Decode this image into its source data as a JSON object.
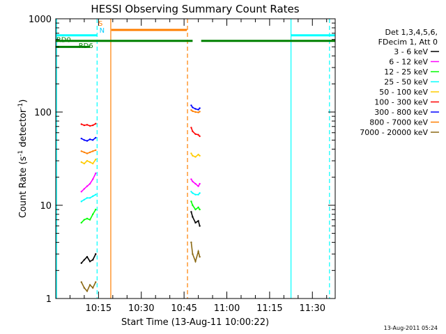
{
  "chart_data": {
    "type": "line",
    "title": "HESSI Observing Summary Count Rates",
    "xlabel": "Start Time (13-Aug-11 10:00:22)",
    "ylabel_main": "Count Rate (s",
    "ylabel_sup1": "-1",
    "ylabel_mid": " detector",
    "ylabel_sup2": "-1",
    "ylabel_end": ")",
    "y_scale": "log",
    "ylim": [
      1,
      1000
    ],
    "y_ticks": [
      {
        "value": 1,
        "label": "1"
      },
      {
        "value": 10,
        "label": "10"
      },
      {
        "value": 100,
        "label": "100"
      },
      {
        "value": 1000,
        "label": "1000"
      }
    ],
    "xlim_minutes": [
      0.0,
      98.0
    ],
    "x_ticks": [
      {
        "value": 15,
        "label": "10:15"
      },
      {
        "value": 30,
        "label": "10:30"
      },
      {
        "value": 45,
        "label": "10:45"
      },
      {
        "value": 60,
        "label": "11:00"
      },
      {
        "value": 75,
        "label": "11:15"
      },
      {
        "value": 90,
        "label": "11:30"
      }
    ],
    "legend_position": "right",
    "legend_header": [
      "Det 1,3,4,5,6,",
      "FDecim 1, Att 0"
    ],
    "series": [
      {
        "name": "3 - 6 keV",
        "color": "#000000",
        "segments": [
          {
            "x": [
              9,
              10,
              11,
              12,
              13,
              14
            ],
            "y": [
              2.4,
              2.6,
              2.8,
              2.5,
              2.6,
              3.0
            ]
          },
          {
            "x": [
              47.5,
              48,
              49,
              50,
              50.5
            ],
            "y": [
              8.5,
              7.5,
              6.5,
              6.8,
              6.0
            ]
          }
        ]
      },
      {
        "name": "6 - 12 keV",
        "color": "#ff00ff",
        "segments": [
          {
            "x": [
              9,
              10,
              11,
              12,
              13,
              14
            ],
            "y": [
              14,
              15,
              16,
              17,
              19,
              22
            ]
          },
          {
            "x": [
              47.5,
              48,
              49,
              50,
              50.5
            ],
            "y": [
              19,
              18,
              17,
              16,
              17
            ]
          }
        ]
      },
      {
        "name": "12 - 25 keV",
        "color": "#00ff00",
        "segments": [
          {
            "x": [
              9,
              10,
              11,
              12,
              13,
              14
            ],
            "y": [
              6.5,
              7,
              7.2,
              7.0,
              8.0,
              9.0
            ]
          },
          {
            "x": [
              47.5,
              48,
              49,
              50,
              50.5
            ],
            "y": [
              11,
              10,
              9,
              9.5,
              9
            ]
          }
        ]
      },
      {
        "name": "25 - 50 keV",
        "color": "#00ffff",
        "segments": [
          {
            "x": [
              9,
              10,
              11,
              12,
              13,
              14
            ],
            "y": [
              11,
              11.5,
              12,
              12,
              12.5,
              13
            ]
          },
          {
            "x": [
              47.5,
              48,
              49,
              50,
              50.5
            ],
            "y": [
              14,
              13.5,
              13,
              13,
              13.5
            ]
          }
        ]
      },
      {
        "name": "50 - 100 keV",
        "color": "#ffcc00",
        "segments": [
          {
            "x": [
              9,
              10,
              11,
              12,
              13,
              14
            ],
            "y": [
              29,
              28,
              30,
              29,
              28,
              31
            ]
          },
          {
            "x": [
              47.5,
              48,
              49,
              50,
              50.5
            ],
            "y": [
              36,
              34,
              33,
              35,
              34
            ]
          }
        ]
      },
      {
        "name": "100 - 300 keV",
        "color": "#ff0000",
        "segments": [
          {
            "x": [
              9,
              10,
              11,
              12,
              13,
              14
            ],
            "y": [
              74,
              72,
              73,
              71,
              72,
              75
            ]
          },
          {
            "x": [
              47.5,
              48,
              49,
              50,
              50.5
            ],
            "y": [
              68,
              62,
              58,
              57,
              55
            ]
          }
        ]
      },
      {
        "name": "300 - 800 keV",
        "color": "#0000ff",
        "segments": [
          {
            "x": [
              9,
              10,
              11,
              12,
              13,
              14
            ],
            "y": [
              52,
              50,
              49,
              51,
              50,
              53
            ]
          },
          {
            "x": [
              47.5,
              48,
              49,
              50,
              50.5
            ],
            "y": [
              118,
              112,
              108,
              106,
              110
            ]
          }
        ]
      },
      {
        "name": "800 - 7000 keV",
        "color": "#ff7f00",
        "segments": [
          {
            "x": [
              9,
              10,
              11,
              12,
              13,
              14
            ],
            "y": [
              38,
              37,
              36,
              37,
              38,
              39
            ]
          },
          {
            "x": [
              47.5,
              48,
              49,
              50,
              50.5
            ],
            "y": [
              105,
              102,
              100,
              99,
              101
            ]
          }
        ]
      },
      {
        "name": "7000 - 20000 keV",
        "color": "#8b6914",
        "segments": [
          {
            "x": [
              9,
              10,
              11,
              12,
              13,
              14
            ],
            "y": [
              1.5,
              1.3,
              1.2,
              1.4,
              1.3,
              1.5
            ]
          },
          {
            "x": [
              47.5,
              48,
              49,
              50,
              50.5
            ],
            "y": [
              4.0,
              3.0,
              2.5,
              3.2,
              2.8
            ]
          }
        ]
      }
    ],
    "flag_bars": [
      {
        "label": "",
        "color": "#00ffff",
        "log_y": 665,
        "segments": [
          [
            0,
            14.5
          ],
          [
            82.5,
            98
          ]
        ]
      },
      {
        "label": "S",
        "label_color": "#ff7f00",
        "color": "#ff7f00",
        "log_y": 760,
        "segments": [
          [
            19.5,
            46
          ]
        ]
      },
      {
        "label": "N",
        "label_color": "#00ccff",
        "color": "#00ffff",
        "log_y": 665,
        "segments": []
      },
      {
        "label": "RD0",
        "label_color": "#008000",
        "color": "#008000",
        "log_y": 580,
        "segments": [
          [
            0,
            48
          ],
          [
            51,
            98
          ]
        ]
      },
      {
        "label": "RD6",
        "label_color": "#008000",
        "color": "#008000",
        "log_y": 500,
        "segments": [
          [
            0,
            12
          ]
        ]
      }
    ],
    "vertical_markers": [
      {
        "x": 0.3,
        "color": "#00ffff",
        "style": "solid"
      },
      {
        "x": 14.5,
        "color": "#00ffff",
        "style": "dashed"
      },
      {
        "x": 19.3,
        "color": "#ff7f00",
        "style": "solid"
      },
      {
        "x": 46.2,
        "color": "#ff7f00",
        "style": "dashed"
      },
      {
        "x": 82.5,
        "color": "#00ffff",
        "style": "solid"
      },
      {
        "x": 96.0,
        "color": "#00ffff",
        "style": "dashed"
      }
    ]
  },
  "footer": {
    "timestamp": "13-Aug-2011 05:24"
  }
}
